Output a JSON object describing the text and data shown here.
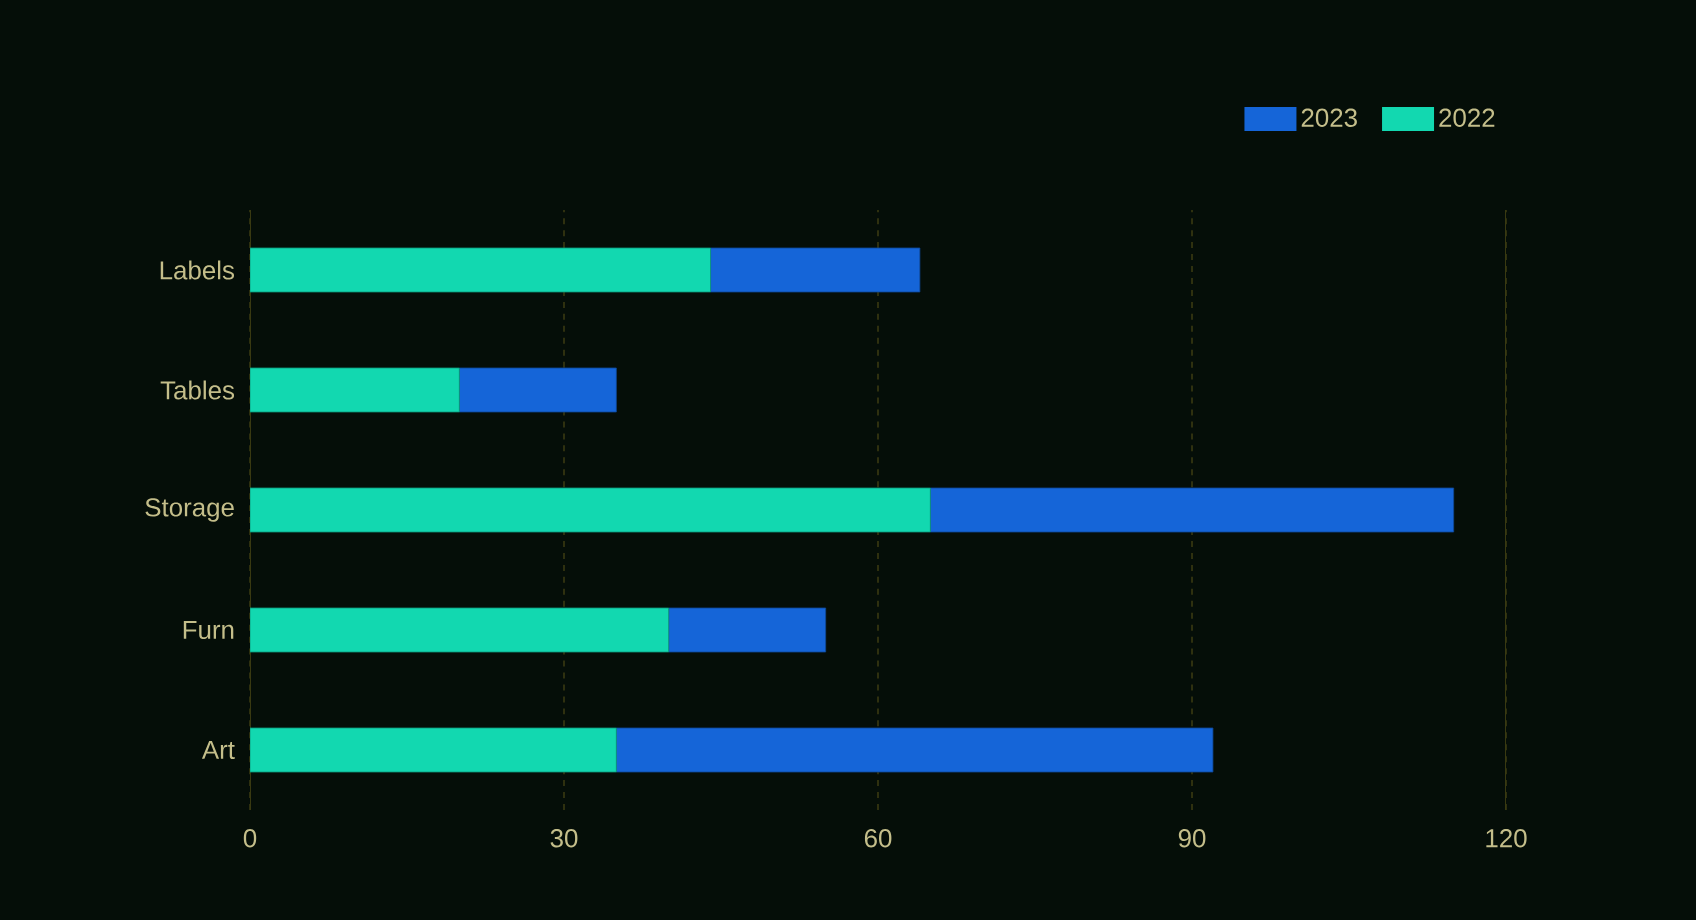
{
  "chart_data": {
    "type": "bar",
    "orientation": "horizontal",
    "stacked": true,
    "categories": [
      "Labels",
      "Tables",
      "Storage",
      "Furn",
      "Art"
    ],
    "series": [
      {
        "name": "2022",
        "color": "#12d8b0",
        "values": [
          44,
          20,
          65,
          40,
          35
        ]
      },
      {
        "name": "2023",
        "color": "#1565d8",
        "values": [
          20,
          15,
          50,
          15,
          57
        ]
      }
    ],
    "xlim": [
      0,
      120
    ],
    "xticks": [
      0,
      30,
      60,
      90,
      120
    ],
    "grid": "x",
    "legend": "top right"
  }
}
